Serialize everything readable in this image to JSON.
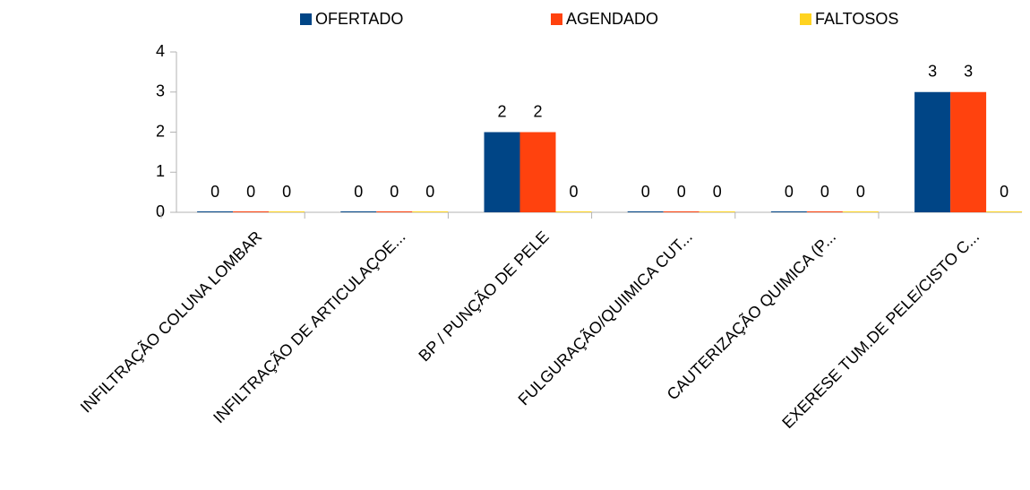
{
  "chart_data": {
    "type": "bar",
    "categories": [
      "INFILTRAÇÃO COLUNA LOMBAR",
      "INFILTRAÇÃO DE ARTICULAÇOE...",
      "BP / PUNÇÃO DE PELE",
      "FULGURAÇÃO/QUIIMICA CUT...",
      "CAUTERIZAÇÃO QUIMICA (P...",
      "EXERESE TUM.DE PELE/CISTO C..."
    ],
    "series": [
      {
        "name": "OFERTADO",
        "color": "#004586",
        "values": [
          0,
          0,
          2,
          0,
          0,
          3
        ]
      },
      {
        "name": "AGENDADO",
        "color": "#ff420e",
        "values": [
          0,
          0,
          2,
          0,
          0,
          3
        ]
      },
      {
        "name": "FALTOSOS",
        "color": "#ffd320",
        "values": [
          0,
          0,
          0,
          0,
          0,
          0
        ]
      }
    ],
    "ylim": [
      0,
      4
    ],
    "yticks": [
      0,
      1,
      2,
      3,
      4
    ],
    "grid": false,
    "legend": "top"
  }
}
